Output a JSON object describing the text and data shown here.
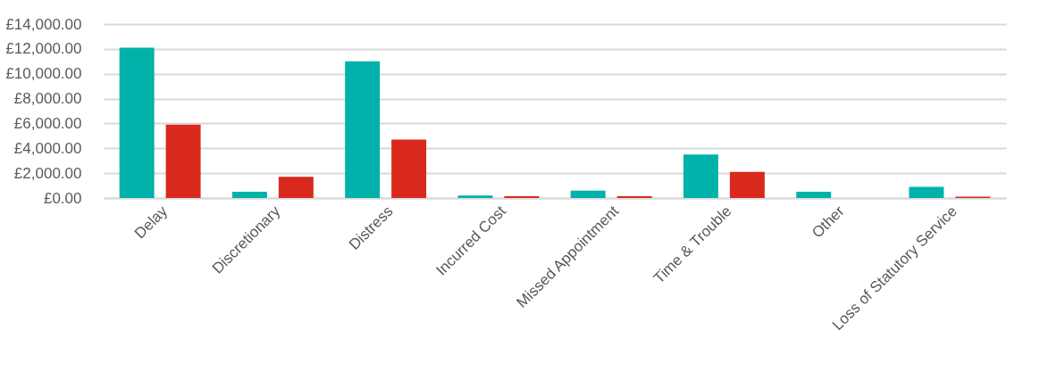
{
  "chart_data": {
    "type": "bar",
    "categories": [
      "Delay",
      "Discretionary",
      "Distress",
      "Incurred Cost",
      "Missed Appointment",
      "Time & Trouble",
      "Other",
      "Loss of Statutory Service"
    ],
    "series": [
      {
        "color": "#00b2a9",
        "values": [
          12100,
          500,
          11000,
          200,
          600,
          3500,
          500,
          900
        ]
      },
      {
        "color": "#d9291c",
        "values": [
          5900,
          1700,
          4700,
          150,
          150,
          2100,
          null,
          100
        ]
      }
    ],
    "ylim": [
      0,
      14000
    ],
    "yticks": [
      {
        "value": 0,
        "label": "£0.00"
      },
      {
        "value": 2000,
        "label": "£2,000.00"
      },
      {
        "value": 4000,
        "label": "£4,000.00"
      },
      {
        "value": 6000,
        "label": "£6,000.00"
      },
      {
        "value": 8000,
        "label": "£8,000.00"
      },
      {
        "value": 10000,
        "label": "£10,000.00"
      },
      {
        "value": 12000,
        "label": "£12,000.00"
      },
      {
        "value": 14000,
        "label": "£14,000.00"
      }
    ],
    "grid": "y",
    "legend": false
  }
}
